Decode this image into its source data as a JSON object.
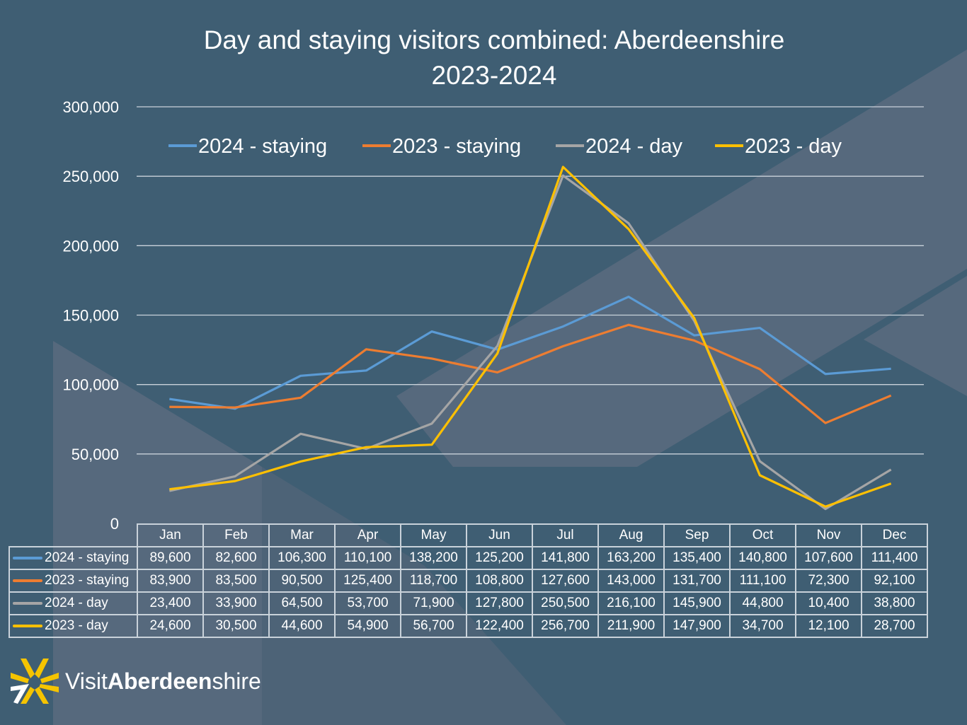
{
  "title_line1": "Day and staying visitors combined: Aberdeenshire",
  "title_line2": "2023-2024",
  "brand": {
    "visit": "Visit",
    "aberdeen": "Aberdeen",
    "shire": "shire"
  },
  "colors": {
    "background": "#3f5e73",
    "band": "#56697d",
    "grid": "#c9d2da",
    "logo_yellow": "#f5c400"
  },
  "chart_data": {
    "type": "line",
    "title": "Day and staying visitors combined: Aberdeenshire 2023-2024",
    "xlabel": "",
    "ylabel": "",
    "ylim": [
      0,
      300000
    ],
    "yticks": [
      0,
      50000,
      100000,
      150000,
      200000,
      250000,
      300000
    ],
    "ytick_labels": [
      "0",
      "50,000",
      "100,000",
      "150,000",
      "200,000",
      "250,000",
      "300,000"
    ],
    "grid": true,
    "legend_position": "top",
    "categories": [
      "Jan",
      "Feb",
      "Mar",
      "Apr",
      "May",
      "Jun",
      "Jul",
      "Aug",
      "Sep",
      "Oct",
      "Nov",
      "Dec"
    ],
    "series": [
      {
        "name": "2024 - staying",
        "color": "#5b9bd5",
        "values": [
          89600,
          82600,
          106300,
          110100,
          138200,
          125200,
          141800,
          163200,
          135400,
          140800,
          107600,
          111400
        ],
        "labels": [
          "89,600",
          "82,600",
          "106,300",
          "110,100",
          "138,200",
          "125,200",
          "141,800",
          "163,200",
          "135,400",
          "140,800",
          "107,600",
          "111,400"
        ]
      },
      {
        "name": "2023 - staying",
        "color": "#ed7d31",
        "values": [
          83900,
          83500,
          90500,
          125400,
          118700,
          108800,
          127600,
          143000,
          131700,
          111100,
          72300,
          92100
        ],
        "labels": [
          "83,900",
          "83,500",
          "90,500",
          "125,400",
          "118,700",
          "108,800",
          "127,600",
          "143,000",
          "131,700",
          "111,100",
          "72,300",
          "92,100"
        ]
      },
      {
        "name": "2024 - day",
        "color": "#a5a5a5",
        "values": [
          23400,
          33900,
          64500,
          53700,
          71900,
          127800,
          250500,
          216100,
          145900,
          44800,
          10400,
          38800
        ],
        "labels": [
          "23,400",
          "33,900",
          "64,500",
          "53,700",
          "71,900",
          "127,800",
          "250,500",
          "216,100",
          "145,900",
          "44,800",
          "10,400",
          "38,800"
        ]
      },
      {
        "name": "2023 - day",
        "color": "#ffc000",
        "values": [
          24600,
          30500,
          44600,
          54900,
          56700,
          122400,
          256700,
          211900,
          147900,
          34700,
          12100,
          28700
        ],
        "labels": [
          "24,600",
          "30,500",
          "44,600",
          "54,900",
          "56,700",
          "122,400",
          "256,700",
          "211,900",
          "147,900",
          "34,700",
          "12,100",
          "28,700"
        ]
      }
    ]
  }
}
